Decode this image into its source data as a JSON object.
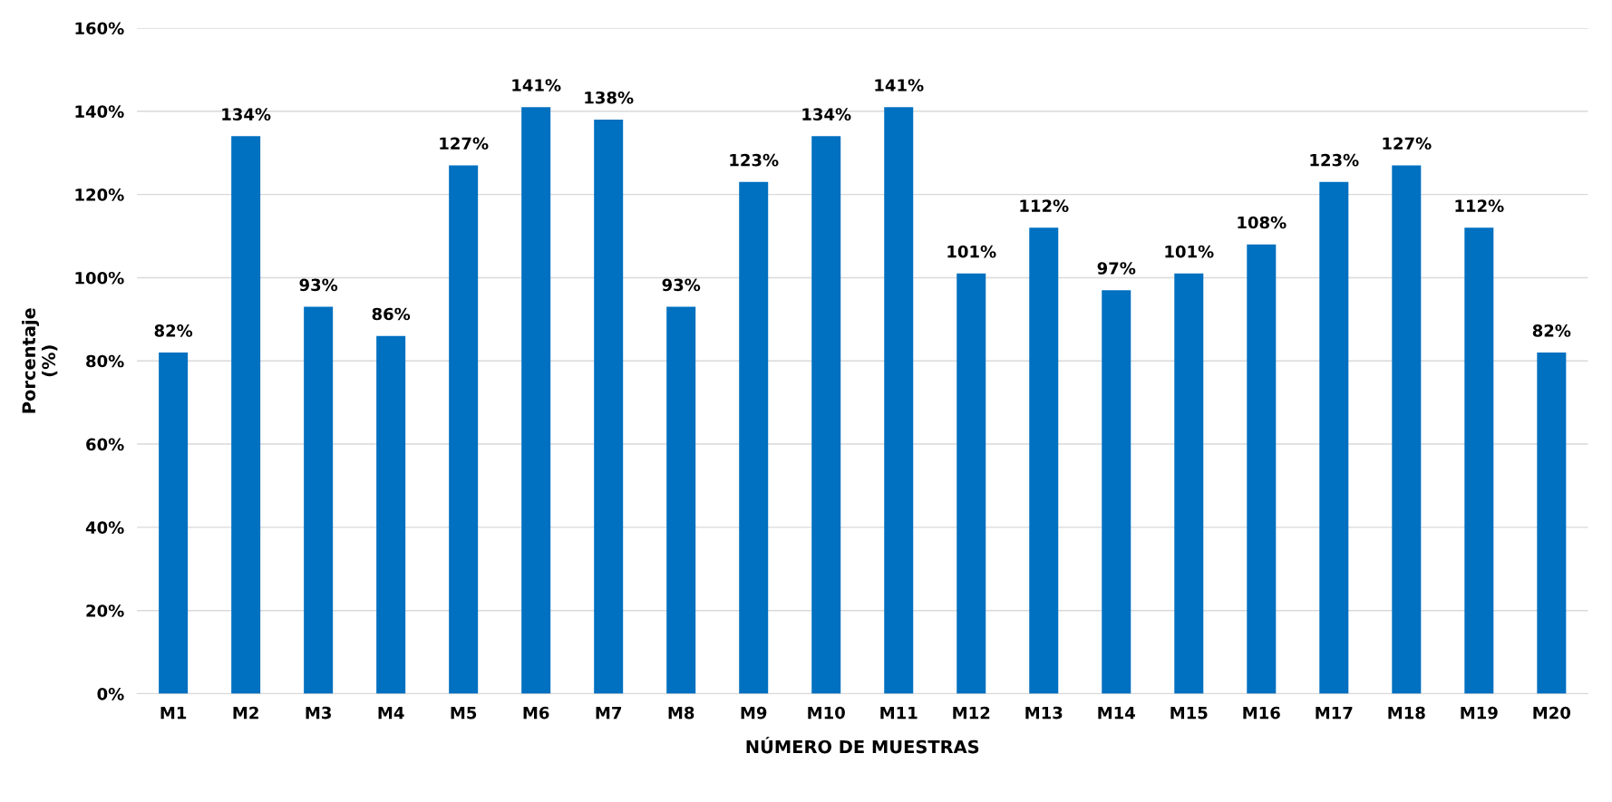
{
  "chart_data": {
    "type": "bar",
    "xlabel": "NÚMERO DE MUESTRAS",
    "ylabel": "Porcentaje\n(%)",
    "categories": [
      "M1",
      "M2",
      "M3",
      "M4",
      "M5",
      "M6",
      "M7",
      "M8",
      "M9",
      "M10",
      "M11",
      "M12",
      "M13",
      "M14",
      "M15",
      "M16",
      "M17",
      "M18",
      "M19",
      "M20"
    ],
    "values": [
      82,
      134,
      93,
      86,
      127,
      141,
      138,
      93,
      123,
      134,
      141,
      101,
      112,
      97,
      101,
      108,
      123,
      127,
      112,
      82
    ],
    "value_labels": [
      "82%",
      "134%",
      "93%",
      "86%",
      "127%",
      "141%",
      "138%",
      "93%",
      "123%",
      "134%",
      "141%",
      "101%",
      "112%",
      "97%",
      "101%",
      "108%",
      "123%",
      "127%",
      "112%",
      "82%"
    ],
    "color": "#0070c0",
    "ylim": [
      0,
      160
    ],
    "yticks": [
      {
        "value": 0,
        "label": "0%"
      },
      {
        "value": 20,
        "label": "20%"
      },
      {
        "value": 40,
        "label": "40%"
      },
      {
        "value": 60,
        "label": "60%"
      },
      {
        "value": 80,
        "label": "80%"
      },
      {
        "value": 100,
        "label": "100%"
      },
      {
        "value": 120,
        "label": "120%"
      },
      {
        "value": 140,
        "label": "140%"
      },
      {
        "value": 160,
        "label": "160%"
      }
    ],
    "grid": "y"
  }
}
